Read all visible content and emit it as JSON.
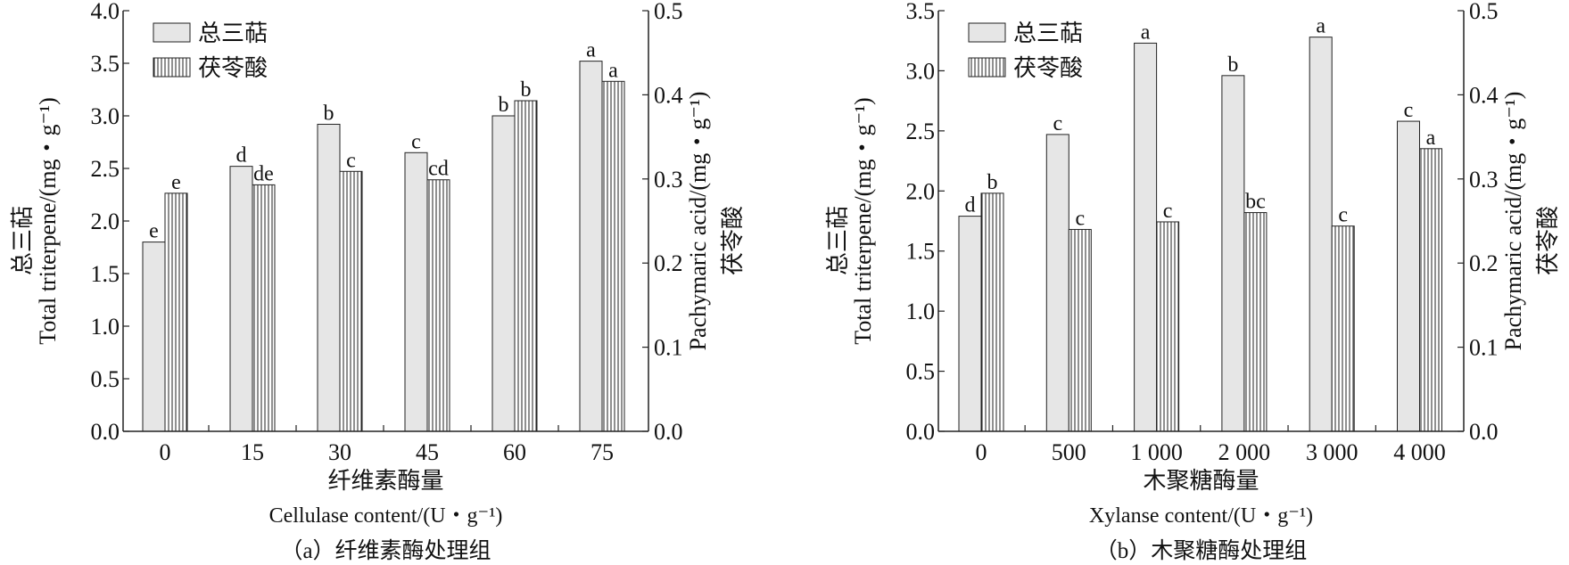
{
  "chart_data": [
    {
      "type": "bar",
      "panel_caption": "（a）纤维素酶处理组",
      "categories": [
        "0",
        "15",
        "30",
        "45",
        "60",
        "75"
      ],
      "xlabel_cn": "纤维素酶量",
      "xlabel_en": "Cellulase content/(U・g⁻¹)",
      "ylabel_left_en": "Total triterpene/(mg・g⁻¹)",
      "ylabel_left_cn": "总三萜",
      "ylabel_right_en": "Pachymaric acid/(mg・g⁻¹)",
      "ylabel_right_cn": "茯苓酸",
      "ylim_left": [
        0,
        4.0
      ],
      "yticks_left": [
        "0.0",
        "0.5",
        "1.0",
        "1.5",
        "2.0",
        "2.5",
        "3.0",
        "3.5",
        "4.0"
      ],
      "ylim_right": [
        0,
        0.5
      ],
      "yticks_right": [
        "0.0",
        "0.1",
        "0.2",
        "0.3",
        "0.4",
        "0.5"
      ],
      "legend": [
        "总三萜",
        "茯苓酸"
      ],
      "legend_position": "top-left",
      "series": [
        {
          "name": "总三萜",
          "axis": "left",
          "values": [
            1.8,
            2.52,
            2.92,
            2.65,
            3.0,
            3.52
          ],
          "labels": [
            "e",
            "d",
            "b",
            "c",
            "b",
            "a"
          ]
        },
        {
          "name": "茯苓酸",
          "axis": "right",
          "values": [
            0.283,
            0.293,
            0.309,
            0.299,
            0.393,
            0.416
          ],
          "labels": [
            "e",
            "de",
            "c",
            "cd",
            "b",
            "a"
          ]
        }
      ]
    },
    {
      "type": "bar",
      "panel_caption": "（b）木聚糖酶处理组",
      "categories": [
        "0",
        "500",
        "1 000",
        "2 000",
        "3 000",
        "4 000"
      ],
      "xlabel_cn": "木聚糖酶量",
      "xlabel_en": "Xylanse content/(U・g⁻¹)",
      "ylabel_left_en": "Total triterpene/(mg・g⁻¹)",
      "ylabel_left_cn": "总三萜",
      "ylabel_right_en": "Pachymaric acid/(mg・g⁻¹)",
      "ylabel_right_cn": "茯苓酸",
      "ylim_left": [
        0,
        3.5
      ],
      "yticks_left": [
        "0.0",
        "0.5",
        "1.0",
        "1.5",
        "2.0",
        "2.5",
        "3.0",
        "3.5"
      ],
      "ylim_right": [
        0,
        0.5
      ],
      "yticks_right": [
        "0.0",
        "0.1",
        "0.2",
        "0.3",
        "0.4",
        "0.5"
      ],
      "legend": [
        "总三萜",
        "茯苓酸"
      ],
      "legend_position": "top-left",
      "series": [
        {
          "name": "总三萜",
          "axis": "left",
          "values": [
            1.79,
            2.47,
            3.23,
            2.96,
            3.28,
            2.58
          ],
          "labels": [
            "d",
            "c",
            "a",
            "b",
            "a",
            "c"
          ]
        },
        {
          "name": "茯苓酸",
          "axis": "right",
          "values": [
            0.283,
            0.24,
            0.249,
            0.26,
            0.244,
            0.336
          ],
          "labels": [
            "b",
            "c",
            "c",
            "bc",
            "c",
            "a"
          ]
        }
      ]
    }
  ],
  "colors": {
    "bar_fill": "#e6e6e6",
    "stroke": "#222222"
  }
}
